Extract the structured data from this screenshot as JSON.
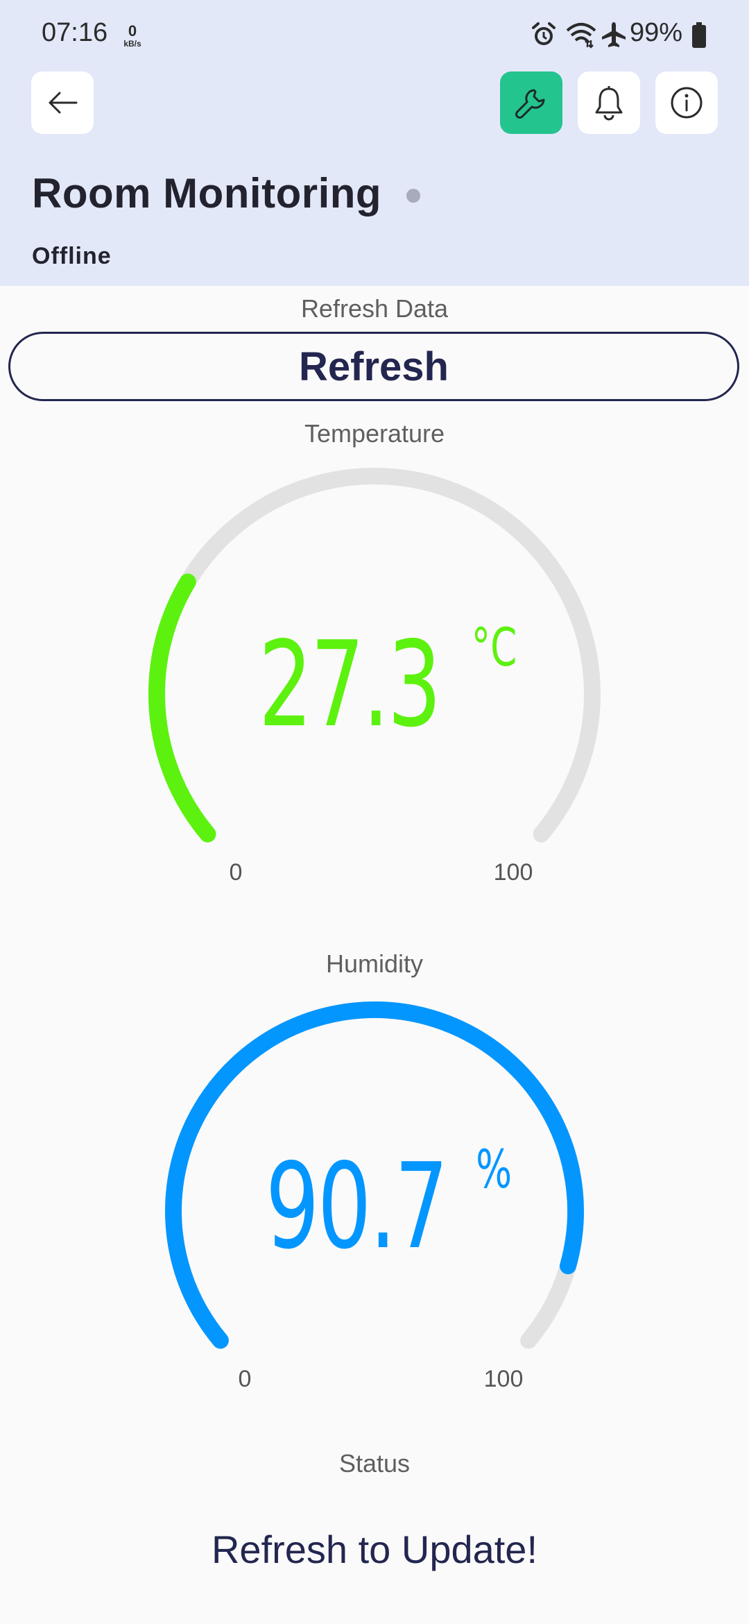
{
  "status_bar": {
    "time": "07:16",
    "net_speed_value": "0",
    "net_speed_unit": "kB/s",
    "battery": "99%",
    "icons": [
      "alarm-icon",
      "wifi-icon",
      "airplane-icon",
      "battery-icon"
    ]
  },
  "header": {
    "title": "Room Monitoring",
    "device_status": "Offline",
    "buttons": [
      "back-icon",
      "wrench-icon",
      "bell-icon",
      "info-icon"
    ]
  },
  "refresh": {
    "label": "Refresh Data",
    "button_label": "Refresh"
  },
  "temperature": {
    "label": "Temperature",
    "value": 27.3,
    "display_value": "27.3",
    "unit": "°C",
    "min": "0",
    "max": "100",
    "range": [
      0,
      100
    ],
    "color": "#5df10f"
  },
  "humidity": {
    "label": "Humidity",
    "value": 90.7,
    "display_value": "90.7",
    "unit": "%",
    "min": "0",
    "max": "100",
    "range": [
      0,
      100
    ],
    "color": "#0496ff"
  },
  "status": {
    "label": "Status",
    "message": "Refresh to Update!"
  },
  "colors": {
    "header_bg": "#e3e8f8",
    "accent_green": "#24c48e",
    "navy": "#23264f",
    "track": "#e2e2e2"
  }
}
